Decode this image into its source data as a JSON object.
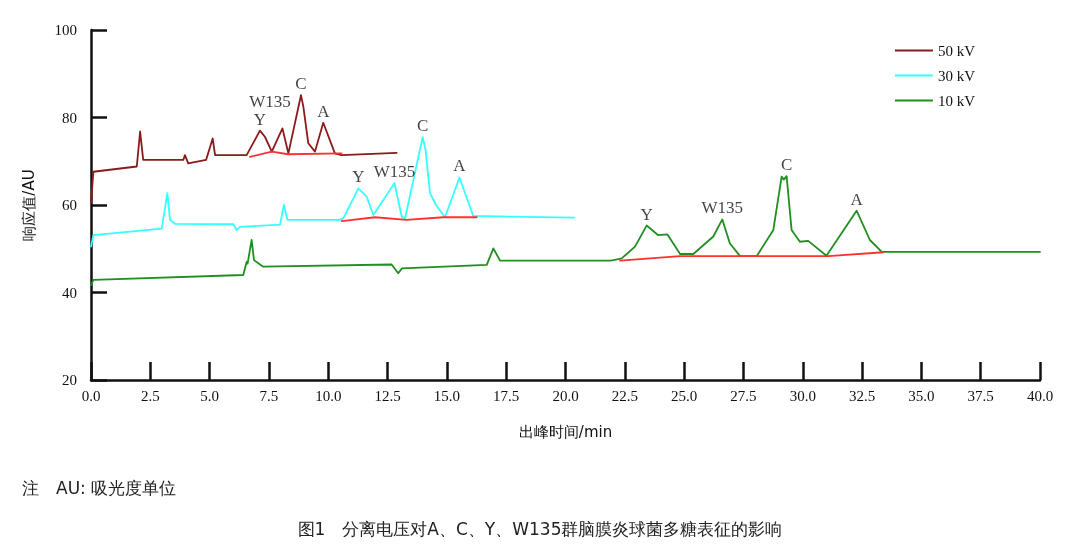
{
  "chart_data": {
    "type": "line",
    "title": "图1　分离电压对A、C、Y、W135群脑膜炎球菌多糖表征的影响",
    "xlabel": "出峰时间/min",
    "ylabel": "响应值/AU",
    "xlim": [
      0,
      40
    ],
    "ylim": [
      20,
      100
    ],
    "xticks": [
      {
        "value": 0,
        "label": "0.0"
      },
      {
        "value": 2.5,
        "label": "2.5"
      },
      {
        "value": 5,
        "label": "5.0"
      },
      {
        "value": 7.5,
        "label": "7.5"
      },
      {
        "value": 10,
        "label": "10.0"
      },
      {
        "value": 12.5,
        "label": "12.5"
      },
      {
        "value": 15,
        "label": "15.0"
      },
      {
        "value": 17.5,
        "label": "17.5"
      },
      {
        "value": 20,
        "label": "20.0"
      },
      {
        "value": 22.5,
        "label": "22.5"
      },
      {
        "value": 25,
        "label": "25.0"
      },
      {
        "value": 27.5,
        "label": "27.5"
      },
      {
        "value": 30,
        "label": "30.0"
      },
      {
        "value": 32.5,
        "label": "32.5"
      },
      {
        "value": 35,
        "label": "35.0"
      },
      {
        "value": 37.5,
        "label": "37.5"
      },
      {
        "value": 40,
        "label": "40.0"
      }
    ],
    "yticks": [
      20,
      40,
      60,
      80,
      100
    ],
    "grid": false,
    "legend": "top right",
    "marker": "none",
    "line_style": "solid",
    "series": [
      {
        "name": "50 kV",
        "color": "#8b1a1a",
        "x": [
          0,
          0.1,
          1.93,
          2.07,
          2.2,
          3.89,
          3.96,
          4.1,
          4.85,
          5.13,
          5.23,
          6.56,
          7.12,
          7.33,
          7.62,
          8.07,
          8.32,
          8.85,
          8.95,
          9.16,
          9.44,
          9.79,
          10.28,
          10.56,
          12.88
        ],
        "values": [
          60.5,
          67.6,
          68.8,
          76.8,
          70.3,
          70.3,
          71.4,
          69.5,
          70.3,
          75.2,
          71.4,
          71.4,
          77.0,
          75.6,
          72.2,
          77.5,
          71.8,
          85.1,
          82.5,
          74.1,
          72.2,
          78.8,
          71.8,
          71.4,
          71.9
        ]
      },
      {
        "name": "30 kV",
        "color": "#33ffff",
        "x": [
          0,
          0.1,
          2.98,
          3.22,
          3.33,
          3.54,
          6.0,
          6.14,
          6.28,
          7.97,
          8.13,
          8.28,
          10.5,
          10.64,
          11.27,
          11.62,
          11.9,
          12.79,
          13.1,
          13.24,
          13.98,
          14.1,
          14.29,
          14.54,
          14.92,
          15.53,
          16.11,
          20.37
        ],
        "values": [
          50.5,
          53.1,
          54.6,
          62.7,
          56.6,
          55.7,
          55.6,
          54.3,
          55.0,
          55.5,
          60.0,
          56.6,
          56.6,
          57.0,
          63.8,
          61.9,
          57.7,
          65.0,
          57.3,
          57.0,
          75.5,
          72.6,
          62.7,
          60.0,
          57.2,
          66.3,
          57.5,
          57.1
        ]
      },
      {
        "name": "10 kV",
        "color": "#1f8f1f",
        "x": [
          0,
          0.1,
          6.42,
          6.56,
          6.6,
          6.77,
          6.87,
          7.26,
          12.67,
          12.95,
          13.1,
          16.68,
          16.96,
          17.24,
          21.88,
          22.02,
          22.37,
          22.93,
          23.42,
          23.91,
          24.29,
          24.83,
          25.39,
          26.23,
          26.61,
          26.93,
          27.36,
          28.06,
          28.76,
          29.11,
          29.2,
          29.32,
          29.53,
          29.88,
          30.23,
          31.0,
          32.27,
          32.83,
          33.33,
          40
        ],
        "values": [
          41.7,
          42.9,
          44.0,
          47.0,
          46.6,
          52.0,
          47.4,
          45.9,
          46.4,
          44.4,
          45.5,
          46.3,
          50.1,
          47.3,
          47.3,
          47.4,
          47.8,
          50.5,
          55.3,
          53.1,
          53.3,
          48.8,
          48.8,
          52.8,
          56.7,
          51.2,
          48.3,
          48.3,
          54.3,
          66.5,
          65.8,
          66.6,
          54.3,
          51.6,
          51.8,
          48.4,
          58.7,
          52.0,
          49.3,
          49.3
        ]
      },
      {
        "color": "#ff3030",
        "x": [
          6.7,
          7.62,
          8.3,
          10.56
        ],
        "values": [
          71.0,
          72.2,
          71.6,
          71.8
        ]
      },
      {
        "color": "#ff3030",
        "x": [
          10.57,
          11.97,
          13.3,
          14.85,
          16.26
        ],
        "values": [
          56.3,
          57.2,
          56.6,
          57.2,
          57.2
        ]
      },
      {
        "color": "#ff3030",
        "x": [
          22.3,
          24.83,
          31.08,
          33.4
        ],
        "values": [
          47.3,
          48.3,
          48.3,
          49.2
        ]
      }
    ],
    "annotations": [
      {
        "text": "Y",
        "x": 7.12,
        "y": 77.0
      },
      {
        "text": "W135",
        "x": 8.07,
        "y": 77.5
      },
      {
        "text": "C",
        "x": 8.85,
        "y": 85.1
      },
      {
        "text": "A",
        "x": 9.79,
        "y": 78.8
      },
      {
        "text": "Y",
        "x": 11.27,
        "y": 63.8
      },
      {
        "text": "W135",
        "x": 12.79,
        "y": 65.0
      },
      {
        "text": "C",
        "x": 13.98,
        "y": 75.5
      },
      {
        "text": "A",
        "x": 15.53,
        "y": 66.3
      },
      {
        "text": "Y",
        "x": 23.42,
        "y": 55.3
      },
      {
        "text": "W135",
        "x": 26.61,
        "y": 56.7
      },
      {
        "text": "C",
        "x": 29.32,
        "y": 66.6
      },
      {
        "text": "A",
        "x": 32.27,
        "y": 58.7
      },
      "注　AU: 吸光度单位"
    ]
  }
}
